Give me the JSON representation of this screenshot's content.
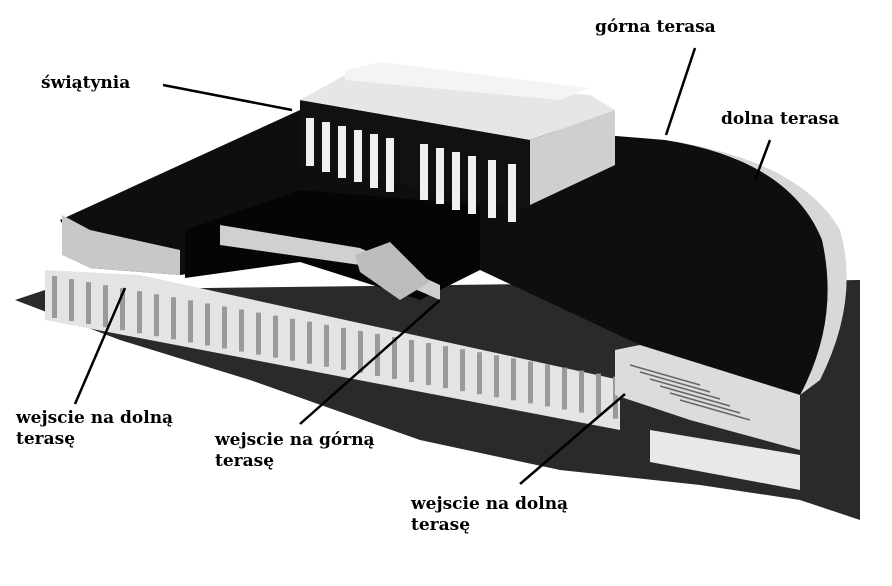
{
  "labels": {
    "temple": "świątynia",
    "upper_terrace": "górna terasa",
    "lower_terrace": "dolna terasa",
    "entrance_lower_left": "wejscie na dolną terasę",
    "entrance_upper": "wejscie na górną terasę",
    "entrance_lower_right": "wejscie na dolną terasę"
  }
}
